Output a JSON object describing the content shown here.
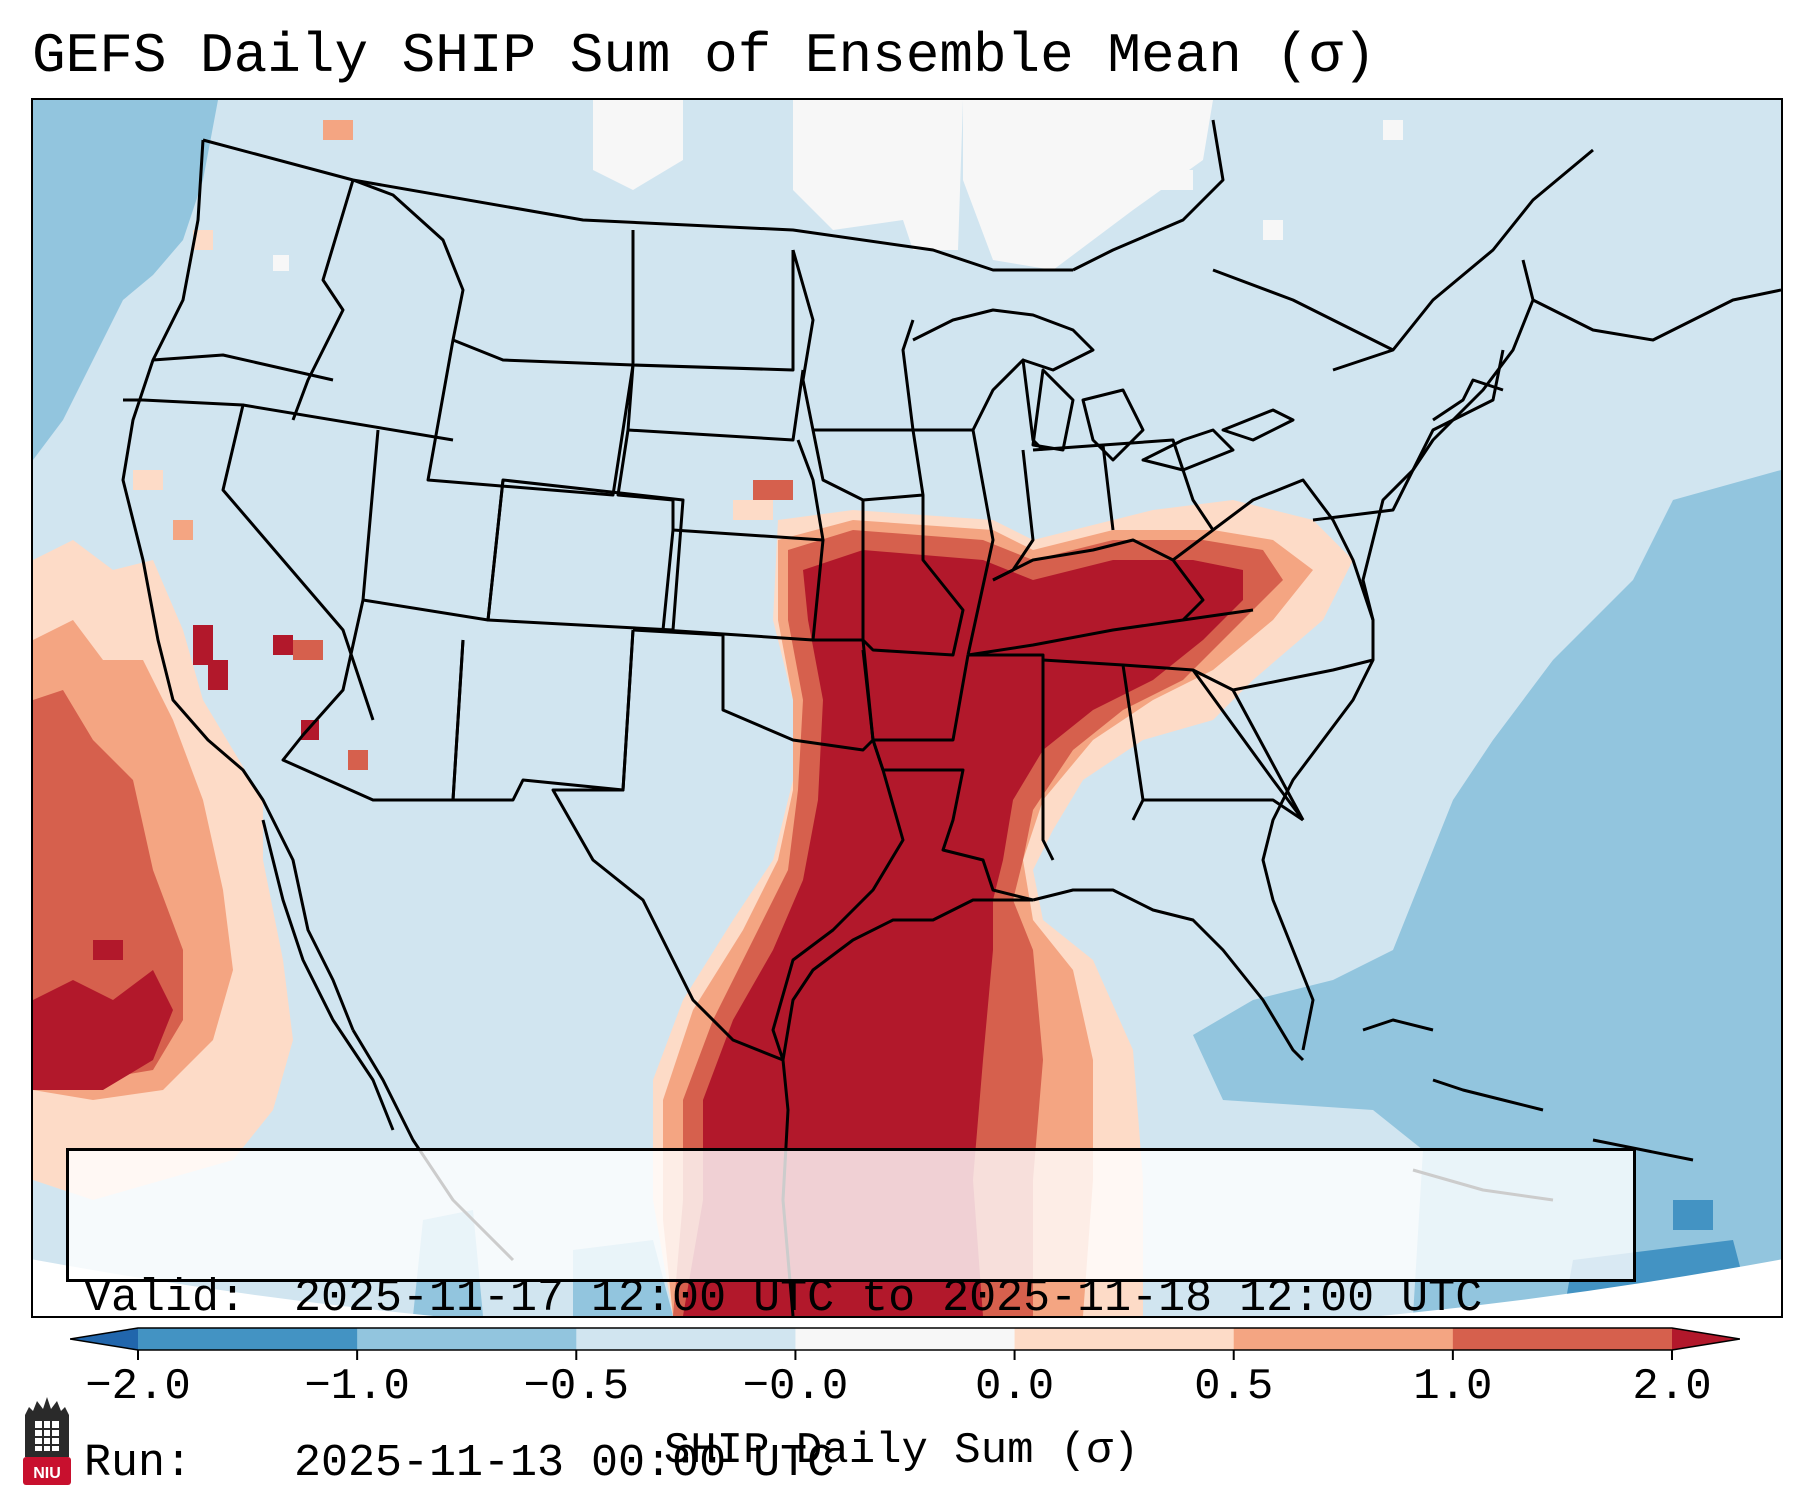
{
  "title": "GEFS Daily SHIP Sum of Ensemble Mean (σ)",
  "info": {
    "valid_key": "Valid:",
    "valid_value": "2025-11-17 12:00 UTC to 2025-11-18 12:00 UTC",
    "run_key": "Run:",
    "run_value": "2025-11-13 00:00 UTC"
  },
  "colorbar": {
    "label": "SHIP Daily Sum (σ)",
    "ticks": [
      "−2.0",
      "−1.0",
      "−0.5",
      "−0.0",
      "0.0",
      "0.5",
      "1.0",
      "2.0"
    ],
    "bin_colors": [
      "#4393c3",
      "#92c5de",
      "#d1e5f0",
      "#f7f7f7",
      "#fddbc7",
      "#f4a582",
      "#d6604d"
    ],
    "under_color": "#2166ac",
    "over_color": "#b2182b",
    "extend": "both"
  },
  "map": {
    "projection": "Lambert conformal, CONUS",
    "background_bin": "-0.5 to -0.0",
    "positive_anomaly_region": "Lower Mississippi & Tennessee Valleys to Ohio Valley",
    "ocean_bins": [
      "-1.0 to -0.5",
      "-2.0 to -1.0"
    ],
    "boundaries": [
      "coastlines",
      "US states",
      "Canadian provinces",
      "Mexico border",
      "Great Lakes"
    ]
  },
  "logo": {
    "text": "NIU"
  }
}
